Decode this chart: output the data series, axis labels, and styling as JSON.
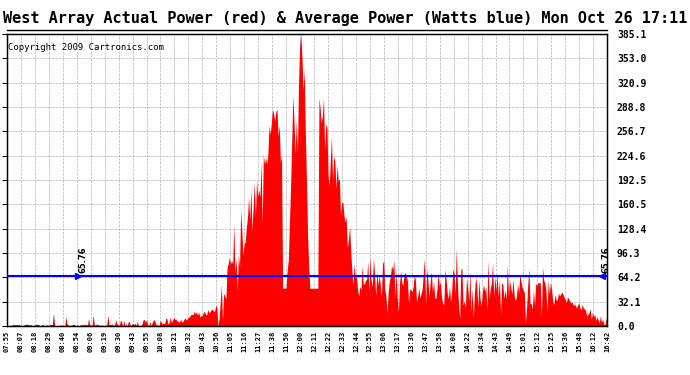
{
  "title": "West Array Actual Power (red) & Average Power (Watts blue) Mon Oct 26 17:11",
  "copyright": "Copyright 2009 Cartronics.com",
  "avg_power": 65.76,
  "ymax": 385.1,
  "ymin": 0.0,
  "yticks": [
    0.0,
    32.1,
    64.2,
    96.3,
    128.4,
    160.5,
    192.5,
    224.6,
    256.7,
    288.8,
    320.9,
    353.0,
    385.1
  ],
  "ytick_labels": [
    "0.0",
    "32.1",
    "64.2",
    "96.3",
    "128.4",
    "160.5",
    "192.5",
    "224.6",
    "256.7",
    "288.8",
    "320.9",
    "353.0",
    "385.1"
  ],
  "bar_color": "#ff0000",
  "line_color": "#0000ff",
  "background_color": "white",
  "grid_color": "#aaaaaa",
  "title_fontsize": 11,
  "copyright_fontsize": 6.5,
  "xtick_labels": [
    "07:55",
    "08:07",
    "08:18",
    "08:29",
    "08:40",
    "08:54",
    "09:06",
    "09:19",
    "09:30",
    "09:43",
    "09:55",
    "10:08",
    "10:21",
    "10:32",
    "10:43",
    "10:56",
    "11:05",
    "11:16",
    "11:27",
    "11:38",
    "11:50",
    "12:00",
    "12:11",
    "12:22",
    "12:33",
    "12:44",
    "12:55",
    "13:06",
    "13:17",
    "13:36",
    "13:47",
    "13:58",
    "14:08",
    "14:22",
    "14:34",
    "14:43",
    "14:49",
    "15:01",
    "15:12",
    "15:25",
    "15:36",
    "15:48",
    "16:12",
    "16:42"
  ]
}
